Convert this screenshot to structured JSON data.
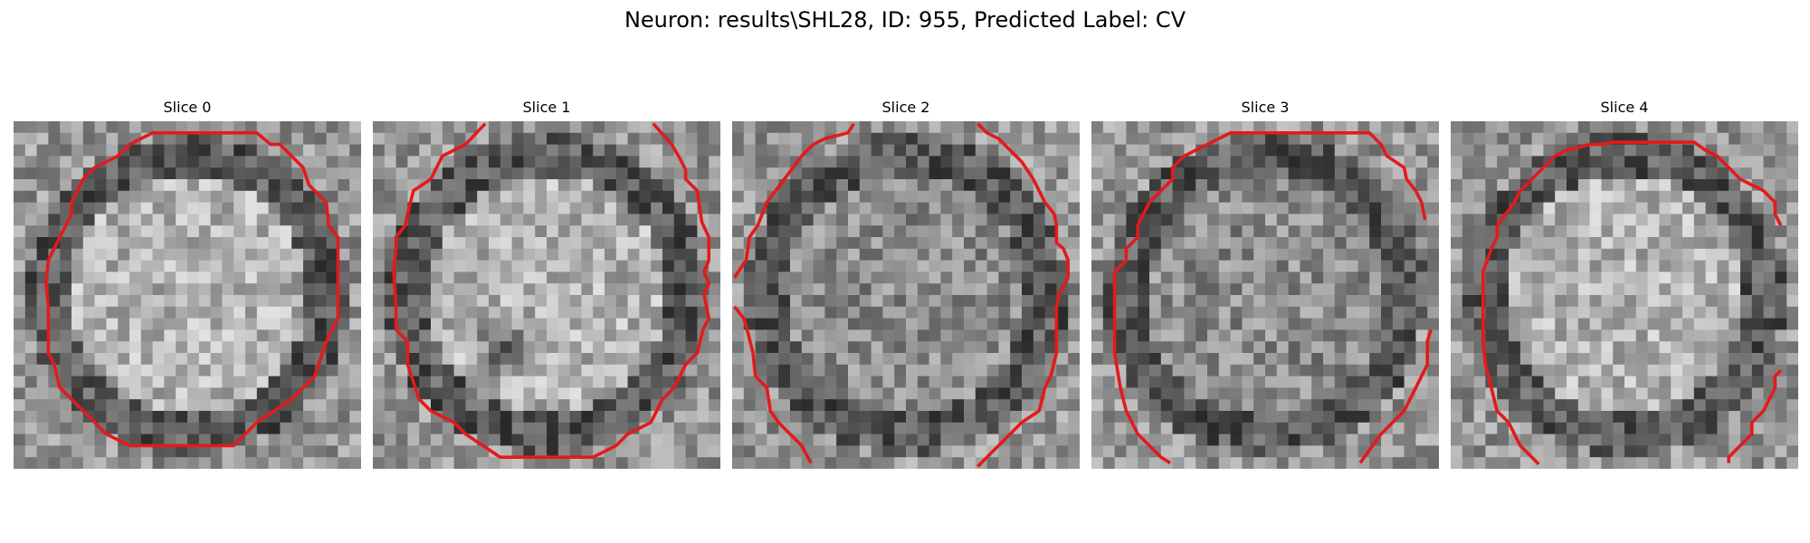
{
  "figure": {
    "title": "Neuron: results\\SHL28, ID: 955, Predicted Label: CV"
  },
  "contour_color": "#e31a1c",
  "slices": [
    {
      "title": "Slice 0",
      "image": "grayscale-cell-microscopy-slice",
      "seed": 11,
      "bright_center": true,
      "dark_spot": false
    },
    {
      "title": "Slice 1",
      "image": "grayscale-cell-microscopy-slice",
      "seed": 23,
      "bright_center": true,
      "dark_spot": true
    },
    {
      "title": "Slice 2",
      "image": "grayscale-cell-microscopy-slice",
      "seed": 37,
      "bright_center": false,
      "dark_spot": false
    },
    {
      "title": "Slice 3",
      "image": "grayscale-cell-microscopy-slice",
      "seed": 41,
      "bright_center": false,
      "dark_spot": false
    },
    {
      "title": "Slice 4",
      "image": "grayscale-cell-microscopy-slice",
      "seed": 53,
      "bright_center": true,
      "dark_spot": false
    }
  ]
}
